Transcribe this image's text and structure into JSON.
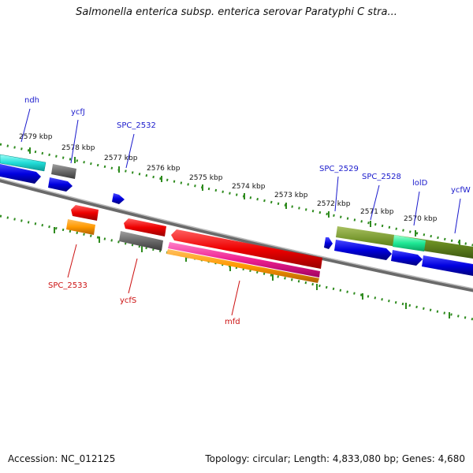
{
  "title": "Salmonella enterica subsp. enterica serovar Paratyphi C stra...",
  "footer": {
    "accession": "Accession: NC_012125",
    "summary": "Topology: circular; Length: 4,833,080 bp; Genes: 4,680"
  },
  "colors": {
    "ruler": "#2e8b1e",
    "backbone": "#808080",
    "forward_label": "#1a1acc",
    "reverse_label": "#cc1111"
  },
  "scale_labels": [
    "2579 kbp",
    "2578 kbp",
    "2577 kbp",
    "2576 kbp",
    "2575 kbp",
    "2574 kbp",
    "2573 kbp",
    "2572 kbp",
    "2571 kbp",
    "2570 kbp"
  ],
  "genes_forward": [
    {
      "name": "ndh"
    },
    {
      "name": "ycfJ"
    },
    {
      "name": "SPC_2532"
    },
    {
      "name": "SPC_2529"
    },
    {
      "name": "SPC_2528"
    },
    {
      "name": "lolD"
    },
    {
      "name": "ycfW"
    }
  ],
  "genes_reverse": [
    {
      "name": "SPC_2533"
    },
    {
      "name": "ycfS"
    },
    {
      "name": "mfd"
    }
  ]
}
